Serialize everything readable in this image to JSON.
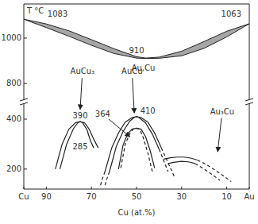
{
  "chart_data": [
    {
      "type": "line",
      "ylabel": "T °C",
      "xlim": [
        100,
        0
      ],
      "ylim": [
        720,
        1150
      ],
      "yticks": [
        800,
        1000
      ],
      "series": [
        {
          "type": "band",
          "color": "#a6a6a6",
          "x": [
            100,
            90,
            80,
            70,
            60,
            50,
            46,
            40,
            30,
            20,
            10,
            0
          ],
          "values": [
            1083,
            1062,
            1032,
            993,
            953,
            918,
            912,
            916,
            942,
            985,
            1030,
            1063
          ],
          "low": [
            1083,
            1046,
            1008,
            968,
            932,
            912,
            910,
            911,
            922,
            955,
            1005,
            1063
          ]
        }
      ],
      "annotations": [
        {
          "text": "1083",
          "x": 85,
          "y": 1105
        },
        {
          "text": "1063",
          "x": 8,
          "y": 1105
        },
        {
          "text": "910",
          "x": 50,
          "y": 945
        },
        {
          "text": "Au,Cu",
          "x": 47,
          "y": 868
        }
      ]
    },
    {
      "type": "line",
      "xlabel": "Cu (at.%)",
      "xlim": [
        100,
        0
      ],
      "ylim": [
        120,
        470
      ],
      "yticks": [
        200,
        400
      ],
      "xticks": [
        {
          "value": 100,
          "label": "Cu"
        },
        90,
        70,
        50,
        30,
        10,
        {
          "value": 0,
          "label": "Au"
        }
      ],
      "series": [
        {
          "color": "#222222",
          "line_style": "solid",
          "x": [
            86,
            83,
            80,
            77,
            75,
            73,
            71,
            69,
            67
          ],
          "values": [
            200,
            300,
            360,
            386,
            390,
            385,
            360,
            320,
            285
          ]
        },
        {
          "color": "#222222",
          "line_style": "solid",
          "x": [
            84,
            81,
            78,
            76,
            75,
            74,
            72,
            70.5,
            69
          ],
          "values": [
            200,
            300,
            362,
            386,
            390,
            387,
            358,
            315,
            285
          ]
        },
        {
          "color": "#222222",
          "line_style": "solid",
          "x": [
            64,
            61,
            58,
            55,
            52,
            50,
            48,
            45,
            42,
            39
          ],
          "values": [
            190,
            285,
            345,
            388,
            406,
            410,
            406,
            388,
            345,
            285
          ]
        },
        {
          "color": "#222222",
          "line_style": "solid",
          "x": [
            62,
            59,
            56,
            53,
            51,
            50,
            49,
            46,
            43,
            40
          ],
          "values": [
            190,
            290,
            350,
            392,
            407,
            410,
            407,
            385,
            340,
            280
          ]
        },
        {
          "color": "#222222",
          "line_style": "solid",
          "x": [
            58,
            56,
            54,
            52,
            50,
            48,
            46,
            44,
            42
          ],
          "values": [
            200,
            295,
            340,
            360,
            364,
            360,
            330,
            275,
            205
          ]
        },
        {
          "color": "#222222",
          "line_style": "dashed",
          "x": [
            57,
            55,
            53,
            51.5,
            50,
            48.5,
            47,
            45,
            43
          ],
          "values": [
            205,
            300,
            342,
            360,
            364,
            358,
            325,
            265,
            190
          ]
        },
        {
          "color": "#222222",
          "line_style": "dashed",
          "x": [
            64,
            65,
            66
          ],
          "values": [
            190,
            165,
            135
          ]
        },
        {
          "color": "#222222",
          "line_style": "dashed",
          "x": [
            62,
            63,
            64
          ],
          "values": [
            190,
            165,
            135
          ]
        },
        {
          "color": "#222222",
          "line_style": "dashed",
          "x": [
            39,
            37,
            35,
            33
          ],
          "values": [
            285,
            245,
            205,
            165
          ]
        },
        {
          "color": "#222222",
          "line_style": "dashed",
          "x": [
            40,
            38,
            36
          ],
          "values": [
            280,
            235,
            190
          ]
        },
        {
          "color": "#222222",
          "line_style": "solid",
          "x": [
            38,
            35,
            32,
            29,
            26,
            23
          ],
          "values": [
            240,
            245,
            248,
            248,
            244,
            236
          ]
        },
        {
          "color": "#222222",
          "line_style": "dashed",
          "x": [
            23,
            19,
            15,
            11,
            8
          ],
          "values": [
            236,
            218,
            195,
            170,
            150
          ]
        },
        {
          "color": "#222222",
          "line_style": "solid",
          "x": [
            36,
            33,
            30,
            27,
            24
          ],
          "values": [
            222,
            228,
            231,
            229,
            222
          ]
        },
        {
          "color": "#222222",
          "line_style": "dashed",
          "x": [
            24,
            20,
            16,
            13
          ],
          "values": [
            222,
            200,
            175,
            155
          ]
        }
      ],
      "annotations": [
        {
          "text": "AuCu₃",
          "x": 74,
          "y": 590,
          "arrow_to": [
            75,
            440
          ]
        },
        {
          "text": "AuCu",
          "x": 52,
          "y": 590,
          "arrow_to": [
            51,
            425
          ]
        },
        {
          "text": "Au₃Cu",
          "x": 12,
          "y": 430,
          "arrow_to": [
            14,
            270
          ]
        },
        {
          "text": "364",
          "x": 65,
          "y": 420,
          "arrow_to": [
            53,
            330
          ]
        },
        {
          "text": "390",
          "x": 75,
          "y": 412
        },
        {
          "text": "410",
          "x": 45,
          "y": 432
        },
        {
          "text": "285",
          "x": 75,
          "y": 290
        }
      ]
    }
  ]
}
